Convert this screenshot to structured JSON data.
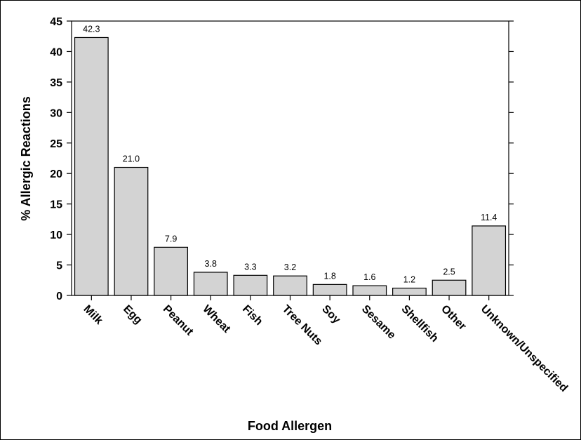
{
  "chart_data": {
    "type": "bar",
    "title": "",
    "xlabel": "Food Allergen",
    "ylabel": "% Allergic Reactions",
    "categories": [
      "Milk",
      "Egg",
      "Peanut",
      "Wheat",
      "Fish",
      "Tree Nuts",
      "Soy",
      "Sesame",
      "Shellfish",
      "Other",
      "Unknown/Unspecified"
    ],
    "values": [
      42.3,
      21.0,
      7.9,
      3.8,
      3.3,
      3.2,
      1.8,
      1.6,
      1.2,
      2.5,
      11.4
    ],
    "value_labels": [
      "42.3",
      "21.0",
      "7.9",
      "3.8",
      "3.3",
      "3.2",
      "1.8",
      "1.6",
      "1.2",
      "2.5",
      "11.4"
    ],
    "ylim": [
      0,
      45
    ],
    "yticks": [
      0,
      5,
      10,
      15,
      20,
      25,
      30,
      35,
      40,
      45
    ],
    "grid": false,
    "legend": "none",
    "bar_color": "#d3d3d3",
    "bar_edge_color": "#000000"
  }
}
